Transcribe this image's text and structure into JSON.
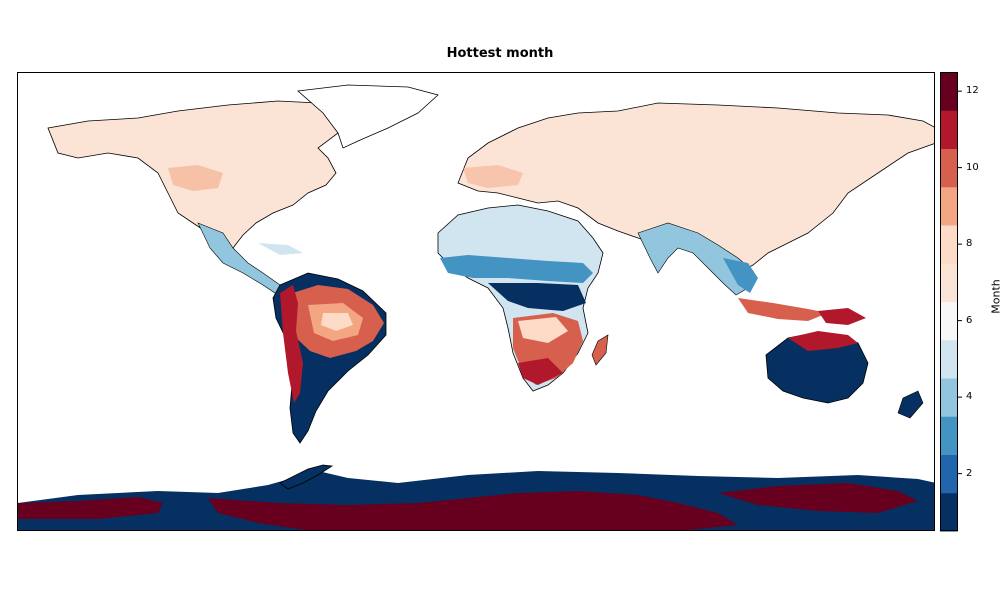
{
  "title": "Hottest month",
  "colorbar": {
    "label": "Month",
    "ticks": [
      "2",
      "4",
      "6",
      "8",
      "10",
      "12"
    ],
    "tick_values": [
      2,
      4,
      6,
      8,
      10,
      12
    ],
    "range": [
      0.5,
      12.5
    ],
    "levels": [
      1,
      2,
      3,
      4,
      5,
      6,
      7,
      8,
      9,
      10,
      11,
      12
    ],
    "colors": [
      "#053061",
      "#2166ac",
      "#4393c3",
      "#92c5de",
      "#d1e5f0",
      "#f7f7f7",
      "#fbe3d6",
      "#fddbc7",
      "#f4a582",
      "#d6604d",
      "#b2182b",
      "#67001f"
    ]
  },
  "legend_colors": {
    "land_north": "#fbe3d6",
    "ocean": "#ffffff",
    "coastline": "#000000"
  }
}
